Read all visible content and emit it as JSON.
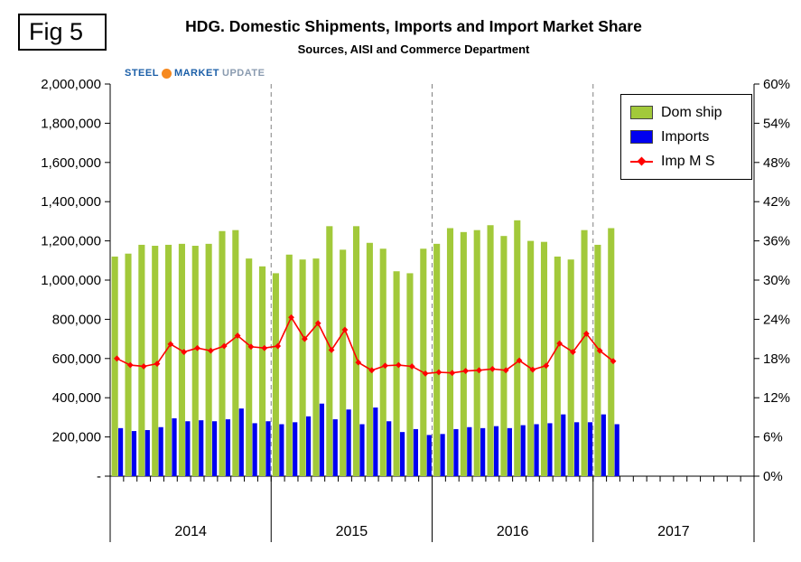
{
  "figure_label": "Fig 5",
  "header": {
    "title": "HDG. Domestic Shipments, Imports and Import Market Share",
    "subtitle": "Sources, AISI and Commerce Department"
  },
  "logo": {
    "steel": "STEEL",
    "market": "MARKET",
    "update": "UPDATE"
  },
  "chart_data": {
    "type": "bar",
    "subtype": "clustered-bars-with-line-on-secondary-axis",
    "title": "HDG. Domestic Shipments, Imports and Import Market Share",
    "years": [
      "2014",
      "2015",
      "2016",
      "2017"
    ],
    "months_per_year": 12,
    "n_months_with_data": 38,
    "grid": "dashed-vertical-year-separators",
    "legend_position": "top-right-inside",
    "colors": {
      "dom_ship": "#A2C93A",
      "imports": "#0000F0",
      "imp_ms": "#FF0000",
      "separator": "#808080"
    },
    "left_axis": {
      "min": 0,
      "max": 2000000,
      "tick_step": 200000,
      "tick_labels": [
        "2,000,000",
        "1,800,000",
        "1,600,000",
        "1,400,000",
        "1,200,000",
        "1,000,000",
        "800,000",
        "600,000",
        "400,000",
        "200,000",
        "-"
      ]
    },
    "right_axis": {
      "min": 0,
      "max": 60,
      "tick_step": 6,
      "tick_labels": [
        "60%",
        "54%",
        "48%",
        "42%",
        "36%",
        "30%",
        "24%",
        "18%",
        "12%",
        "6%",
        "0%"
      ]
    },
    "series": [
      {
        "name": "Dom ship",
        "type": "bar",
        "axis": "left",
        "color": "#A2C93A",
        "values": [
          1120000,
          1135000,
          1180000,
          1175000,
          1180000,
          1185000,
          1175000,
          1185000,
          1250000,
          1255000,
          1110000,
          1070000,
          1035000,
          1130000,
          1105000,
          1110000,
          1275000,
          1155000,
          1275000,
          1190000,
          1160000,
          1045000,
          1035000,
          1160000,
          1185000,
          1265000,
          1245000,
          1255000,
          1280000,
          1225000,
          1305000,
          1200000,
          1195000,
          1120000,
          1105000,
          1255000,
          1180000,
          1265000
        ]
      },
      {
        "name": "Imports",
        "type": "bar",
        "axis": "left",
        "color": "#0000F0",
        "values": [
          245000,
          230000,
          235000,
          250000,
          295000,
          280000,
          285000,
          280000,
          290000,
          345000,
          270000,
          280000,
          265000,
          275000,
          305000,
          370000,
          290000,
          340000,
          265000,
          350000,
          280000,
          225000,
          240000,
          210000,
          215000,
          240000,
          250000,
          245000,
          255000,
          245000,
          260000,
          265000,
          270000,
          315000,
          275000,
          275000,
          315000,
          265000
        ]
      },
      {
        "name": "Imp M S",
        "type": "line",
        "axis": "right",
        "color": "#FF0000",
        "marker": "diamond",
        "values": [
          18.0,
          17.0,
          16.8,
          17.2,
          20.2,
          19.0,
          19.6,
          19.2,
          19.9,
          21.5,
          19.8,
          19.6,
          19.9,
          24.3,
          21.0,
          23.4,
          19.3,
          22.4,
          17.4,
          16.2,
          16.9,
          17.0,
          16.8,
          15.7,
          15.9,
          15.8,
          16.1,
          16.2,
          16.4,
          16.2,
          17.7,
          16.3,
          16.9,
          20.3,
          19.0,
          21.8,
          19.2,
          17.6
        ]
      }
    ]
  }
}
